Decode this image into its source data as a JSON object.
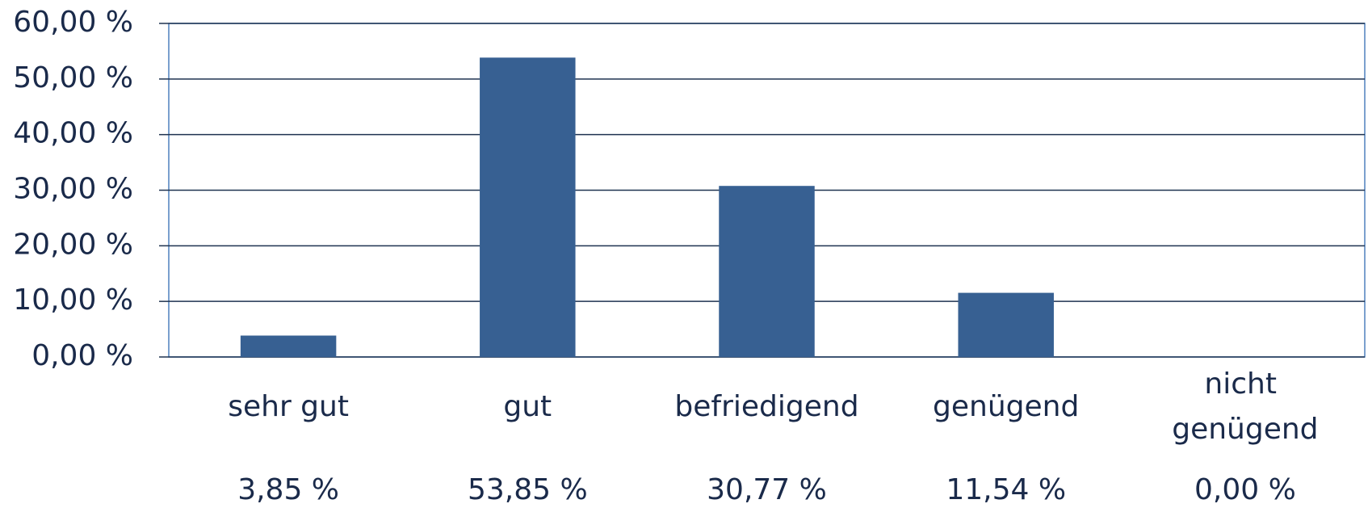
{
  "chart_data": {
    "type": "bar",
    "categories": [
      "sehr gut",
      "gut",
      "befriedigend",
      "genügend",
      "nicht genügend"
    ],
    "values": [
      3.85,
      53.85,
      30.77,
      11.54,
      0
    ],
    "value_labels": [
      "3,85 %",
      "53,85 %",
      "30,77 %",
      "11,54 %",
      "0,00 %"
    ],
    "color": "#376092",
    "ylim": [
      0,
      60
    ],
    "yticks": [
      {
        "value": 0,
        "label": "0,00 %"
      },
      {
        "value": 10,
        "label": "10,00 %"
      },
      {
        "value": 20,
        "label": "20,00 %"
      },
      {
        "value": 30,
        "label": "30,00 %"
      },
      {
        "value": 40,
        "label": "40,00 %"
      },
      {
        "value": 50,
        "label": "50,00 %"
      },
      {
        "value": 60,
        "label": "60,00 %"
      }
    ],
    "grid": true
  }
}
